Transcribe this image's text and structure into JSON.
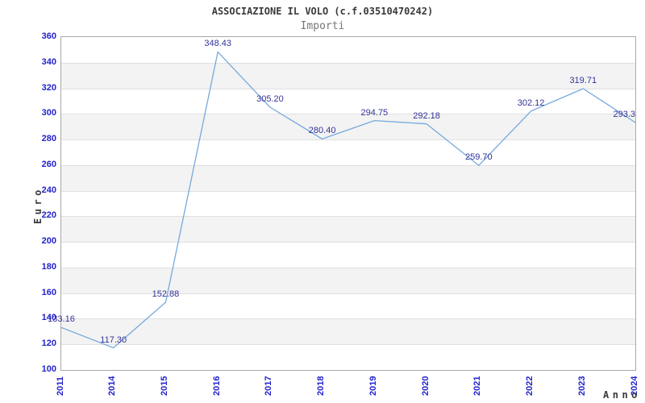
{
  "header": {
    "title": "ASSOCIAZIONE IL VOLO (c.f.03510470242)",
    "subtitle": "Importi"
  },
  "chart_data": {
    "type": "line",
    "title": "ASSOCIAZIONE IL VOLO (c.f.03510470242)",
    "subtitle": "Importi",
    "xlabel": "Anno",
    "ylabel": "Euro",
    "categories": [
      "2011",
      "2014",
      "2015",
      "2016",
      "2017",
      "2018",
      "2019",
      "2020",
      "2021",
      "2022",
      "2023",
      "2024"
    ],
    "values": [
      133.16,
      117.3,
      152.88,
      348.43,
      305.2,
      280.4,
      294.75,
      292.18,
      259.7,
      302.12,
      319.71,
      293.3
    ],
    "point_labels": [
      "133.16",
      "117.30",
      "152.88",
      "348.43",
      "305.20",
      "280.40",
      "294.75",
      "292.18",
      "259.70",
      "302.12",
      "319.71",
      "293.3"
    ],
    "ylim": [
      100,
      360
    ],
    "ytick_step": 20,
    "grid": true,
    "grid_style": "alternating-horizontal-bands",
    "legend": "none",
    "colors": {
      "line": "#76a9dc",
      "tick_labels": "#2222cc",
      "value_labels": "#333399",
      "band_gray": "#f3f3f3",
      "gridline": "#e0e0e0",
      "axis_titles": "#3a3a3a",
      "title_text": "#3a3a3a",
      "subtitle_text": "#757575",
      "background": "#ffffff"
    }
  }
}
